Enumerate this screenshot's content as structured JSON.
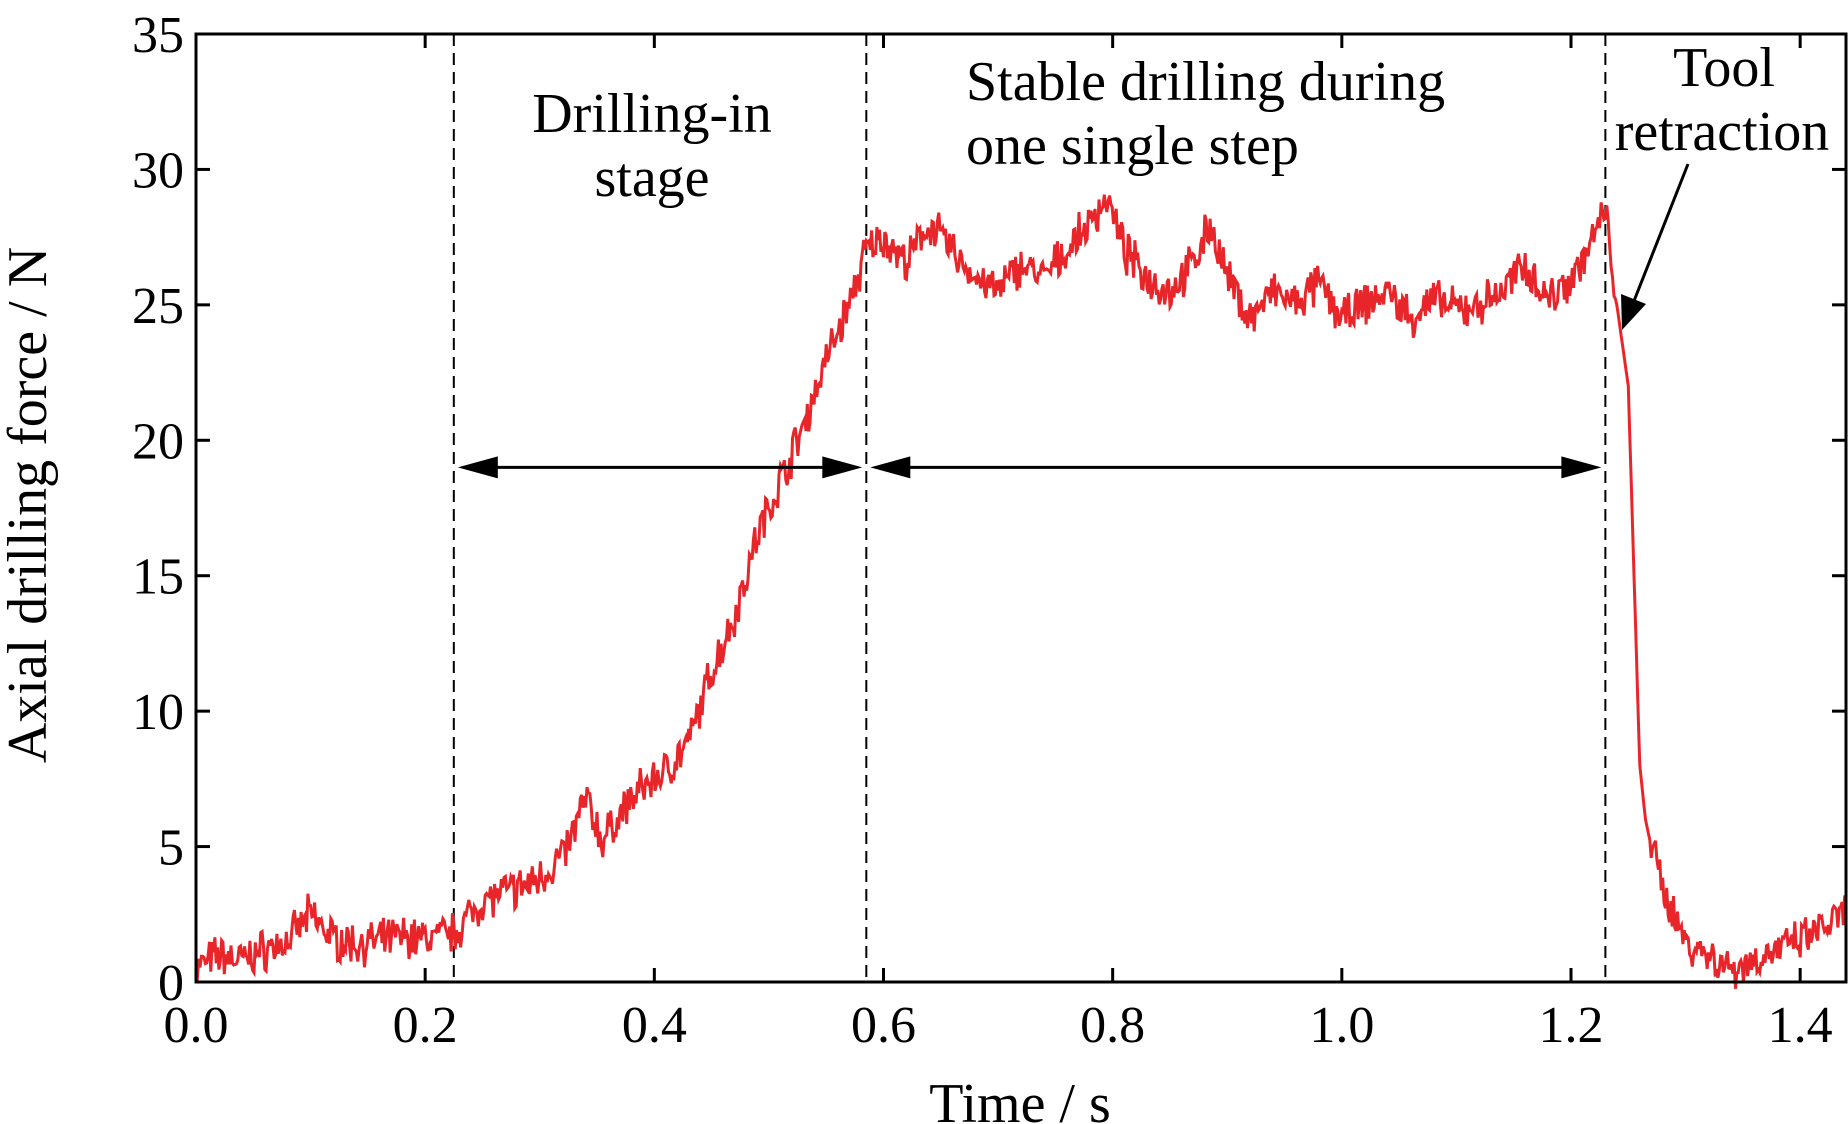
{
  "chart_data": {
    "type": "line",
    "xlabel": "Time / s",
    "ylabel": "Axial drilling force / N",
    "xlim": [
      0.0,
      1.44
    ],
    "ylim": [
      0,
      35
    ],
    "x_ticks": [
      "0.0",
      "0.2",
      "0.4",
      "0.6",
      "0.8",
      "1.0",
      "1.2",
      "1.4"
    ],
    "y_ticks": [
      "0",
      "5",
      "10",
      "15",
      "20",
      "25",
      "30",
      "35"
    ],
    "grid": false,
    "line_color": "#e8262a",
    "series": [
      {
        "x": [
          0.0,
          0.02,
          0.04,
          0.06,
          0.08,
          0.1,
          0.12,
          0.14,
          0.16,
          0.18,
          0.2,
          0.225,
          0.25,
          0.27,
          0.29,
          0.31,
          0.325,
          0.34,
          0.355,
          0.37,
          0.39,
          0.41,
          0.43,
          0.45,
          0.47,
          0.49,
          0.51,
          0.53,
          0.55,
          0.57,
          0.585,
          0.6,
          0.62,
          0.64,
          0.66,
          0.68,
          0.7,
          0.72,
          0.74,
          0.76,
          0.78,
          0.795,
          0.81,
          0.83,
          0.85,
          0.87,
          0.885,
          0.9,
          0.92,
          0.94,
          0.96,
          0.98,
          1.0,
          1.02,
          1.04,
          1.06,
          1.08,
          1.1,
          1.12,
          1.14,
          1.16,
          1.18,
          1.2,
          1.215,
          1.23,
          1.24,
          1.25,
          1.255,
          1.26,
          1.265,
          1.27,
          1.28,
          1.3,
          1.32,
          1.34,
          1.36,
          1.38,
          1.4,
          1.42,
          1.44
        ],
        "values": [
          0.5,
          1.0,
          0.8,
          1.2,
          1.5,
          2.5,
          1.6,
          1.4,
          1.5,
          1.7,
          1.6,
          1.8,
          3.0,
          3.3,
          3.6,
          4.2,
          5.0,
          6.8,
          5.2,
          6.2,
          7.2,
          7.8,
          8.8,
          11.5,
          13.5,
          16.5,
          18.5,
          20.5,
          23.0,
          25.0,
          27.0,
          27.5,
          26.5,
          28.0,
          27.0,
          26.0,
          25.5,
          26.5,
          26.0,
          27.0,
          28.0,
          29.0,
          27.0,
          26.0,
          25.5,
          26.5,
          28.0,
          26.0,
          24.5,
          25.5,
          25.0,
          25.8,
          24.5,
          25.0,
          25.5,
          24.5,
          25.2,
          24.8,
          25.0,
          25.5,
          26.5,
          25.2,
          26.0,
          27.0,
          28.5,
          25.0,
          22.0,
          15.0,
          8.0,
          6.0,
          5.0,
          3.5,
          1.5,
          1.0,
          0.5,
          0.8,
          1.2,
          1.5,
          2.0,
          2.5
        ]
      }
    ],
    "annotations": {
      "drilling_in": [
        "Drilling-in",
        "stage"
      ],
      "stable": [
        "Stable drilling during",
        "one single step"
      ],
      "retraction": [
        "Tool",
        "retraction"
      ]
    },
    "boundaries_x": [
      0.225,
      0.585,
      1.23
    ],
    "arrow_y": 19
  }
}
